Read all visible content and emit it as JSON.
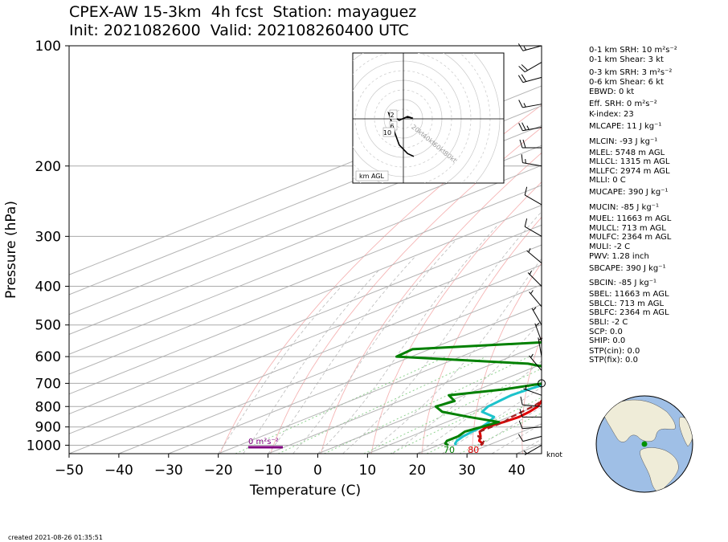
{
  "header": {
    "title_line1": "CPEX-AW 15-3km  4h fcst  Station: mayaguez",
    "title_line2": "Init: 2021082600  Valid: 202108260400 UTC"
  },
  "footer": {
    "created": "created 2021-08-26 01:35:51"
  },
  "chart_data": {
    "type": "skew-t log-p sounding",
    "xlabel": "Temperature (C)",
    "ylabel": "Pressure (hPa)",
    "x_ticks": [
      -50,
      -40,
      -30,
      -20,
      -10,
      0,
      10,
      20,
      30,
      40
    ],
    "y_ticks": [
      100,
      200,
      300,
      400,
      500,
      600,
      700,
      800,
      900,
      1000
    ],
    "xlim": [
      -50,
      45
    ],
    "ylim": [
      1050,
      100
    ],
    "log_pressure": true,
    "grid": true,
    "series": [
      {
        "key": "temperature",
        "color": "#dd0000",
        "points": [
          [
            28.5,
            1000
          ],
          [
            28,
            990
          ],
          [
            26,
            975
          ],
          [
            24,
            950
          ],
          [
            21.5,
            925
          ],
          [
            20.5,
            900
          ],
          [
            21.5,
            875
          ],
          [
            22,
            850
          ],
          [
            21.5,
            825
          ],
          [
            20.5,
            800
          ],
          [
            18.5,
            775
          ],
          [
            16.5,
            750
          ],
          [
            15,
            725
          ],
          [
            14,
            700
          ],
          [
            13.5,
            650
          ],
          [
            13,
            600
          ],
          [
            11.5,
            550
          ],
          [
            10,
            500
          ],
          [
            7.5,
            450
          ],
          [
            5.5,
            400
          ],
          [
            2,
            350
          ],
          [
            -2,
            300
          ],
          [
            -7.5,
            250
          ],
          [
            -14.5,
            200
          ]
        ]
      },
      {
        "key": "dewpoint",
        "color": "#1cc3cc",
        "points": [
          [
            23.5,
            1000
          ],
          [
            22.5,
            990
          ],
          [
            21.5,
            975
          ],
          [
            20.5,
            950
          ],
          [
            20,
            925
          ],
          [
            19.5,
            900
          ],
          [
            18.5,
            875
          ],
          [
            17,
            850
          ],
          [
            12,
            825
          ],
          [
            10.5,
            800
          ],
          [
            10,
            775
          ],
          [
            9.5,
            750
          ],
          [
            10,
            725
          ],
          [
            11,
            700
          ],
          [
            9,
            650
          ],
          [
            4,
            600
          ],
          [
            4.5,
            575
          ],
          [
            5,
            550
          ],
          [
            4.5,
            500
          ],
          [
            2,
            450
          ],
          [
            0,
            400
          ],
          [
            -3.5,
            350
          ],
          [
            -8,
            300
          ],
          [
            -13.5,
            250
          ],
          [
            -19.5,
            200
          ],
          [
            -26,
            150
          ],
          [
            -31,
            120
          ],
          [
            -32,
            110
          ],
          [
            -27,
            100
          ]
        ]
      },
      {
        "key": "wetbulb",
        "color": "#008000",
        "points": [
          [
            22,
            1000
          ],
          [
            20.5,
            990
          ],
          [
            19.5,
            975
          ],
          [
            19.5,
            950
          ],
          [
            18.5,
            925
          ],
          [
            19.5,
            900
          ],
          [
            20.5,
            875
          ],
          [
            12,
            850
          ],
          [
            4,
            825
          ],
          [
            0,
            800
          ],
          [
            1,
            775
          ],
          [
            -3,
            750
          ],
          [
            5,
            725
          ],
          [
            10,
            700
          ],
          [
            7.5,
            650
          ],
          [
            -3,
            625
          ],
          [
            -33,
            600
          ],
          [
            -33.5,
            575
          ],
          [
            -8,
            550
          ],
          [
            -7.5,
            500
          ],
          [
            -10,
            450
          ],
          [
            -15,
            400
          ],
          [
            -15,
            375
          ],
          [
            -13,
            350
          ],
          [
            -14,
            300
          ],
          [
            -16,
            250
          ],
          [
            -21,
            200
          ],
          [
            -30,
            150
          ],
          [
            -34,
            120
          ],
          [
            -35,
            110
          ],
          [
            -35,
            100
          ]
        ]
      },
      {
        "key": "parcel",
        "color": "#a02020",
        "dashed": true,
        "points": [
          [
            28.5,
            1000
          ],
          [
            27,
            975
          ],
          [
            23.5,
            950
          ],
          [
            21.5,
            925
          ],
          [
            21.5,
            900
          ],
          [
            21.5,
            875
          ],
          [
            20.5,
            850
          ],
          [
            20,
            825
          ],
          [
            19.5,
            800
          ],
          [
            18.5,
            775
          ],
          [
            17.5,
            750
          ],
          [
            16.5,
            725
          ],
          [
            16,
            700
          ],
          [
            15,
            650
          ],
          [
            14,
            600
          ],
          [
            12.5,
            550
          ],
          [
            11,
            500
          ],
          [
            9,
            450
          ],
          [
            6.5,
            400
          ],
          [
            3,
            350
          ],
          [
            -1.5,
            300
          ],
          [
            -7,
            250
          ],
          [
            -14.5,
            200
          ],
          [
            -30,
            140
          ],
          [
            -41,
            110
          ]
        ]
      }
    ],
    "surface_labels": {
      "temperature": "80",
      "wetbulb": "70"
    },
    "srh_bar_label": "0 m²s⁻²",
    "barbs": {
      "units": "knot",
      "points": [
        [
          100,
          15,
          255
        ],
        [
          110,
          20,
          240
        ],
        [
          120,
          20,
          255
        ],
        [
          140,
          15,
          260
        ],
        [
          160,
          25,
          260
        ],
        [
          180,
          20,
          270
        ],
        [
          200,
          15,
          280
        ],
        [
          250,
          10,
          300
        ],
        [
          300,
          10,
          300
        ],
        [
          350,
          5,
          310
        ],
        [
          400,
          5,
          315
        ],
        [
          450,
          5,
          320
        ],
        [
          500,
          5,
          330
        ],
        [
          550,
          5,
          340
        ],
        [
          600,
          5,
          350
        ],
        [
          650,
          5,
          320
        ],
        [
          700,
          0,
          0
        ],
        [
          750,
          5,
          290
        ],
        [
          800,
          10,
          275
        ],
        [
          850,
          10,
          270
        ],
        [
          900,
          10,
          265
        ],
        [
          950,
          10,
          255
        ],
        [
          1000,
          5,
          240
        ]
      ]
    },
    "hodograph": {
      "range_labels": [
        "20kt",
        "40kt",
        "60kt",
        "80kt"
      ],
      "height_labels": [
        "2",
        "6",
        "10"
      ],
      "box_label": "km AGL",
      "points": [
        [
          1.5,
          0.5
        ],
        [
          3,
          0.5
        ],
        [
          4.5,
          0.2
        ],
        [
          2,
          0.8
        ],
        [
          -2,
          -0.5
        ],
        [
          -7,
          2
        ],
        [
          -4,
          -5
        ],
        [
          -2,
          -9
        ],
        [
          2,
          -12
        ],
        [
          5,
          -13
        ]
      ]
    },
    "globe_marker": {
      "lat": 18.2,
      "lon": -67.1
    }
  },
  "indices": [
    "0-1 km SRH: 10 m²s⁻²",
    "0-1 km Shear: 3 kt",
    "0-3 km SRH: 3 m²s⁻²",
    "0-6 km Shear: 6 kt",
    "EBWD: 0 kt",
    "Eff. SRH: 0 m²s⁻²",
    "K-index: 23",
    "MLCAPE: 11 J kg⁻¹",
    "MLCIN: -93 J kg⁻¹",
    "MLEL: 5748 m AGL",
    "MLLCL: 1315 m AGL",
    "MLLFC: 2974 m AGL",
    "MLLI: 0 C",
    "MUCAPE: 390 J kg⁻¹",
    "MUCIN: -85 J kg⁻¹",
    "MUEL: 11663 m AGL",
    "MULCL: 713 m AGL",
    "MULFC: 2364 m AGL",
    "MULI: -2 C",
    "PWV: 1.28 inch",
    "SBCAPE: 390 J kg⁻¹",
    "SBCIN: -85 J kg⁻¹",
    "SBEL: 11663 m AGL",
    "SBLCL: 713 m AGL",
    "SBLFC: 2364 m AGL",
    "SBLI: -2 C",
    "SCP: 0.0",
    "SHIP: 0.0",
    "STP(cin): 0.0",
    "STP(fix): 0.0"
  ],
  "colors": {
    "temperature": "#dd0000",
    "dewpoint": "#1cc3cc",
    "wetbulb": "#008000",
    "parcel": "#a02020",
    "isobar": "#aaaaaa",
    "isotherm": "#b4b4b4",
    "dry_adiabat": "#f5b5b5",
    "moist_adiabat": "#bbbbbb",
    "mixing_ratio": "#8fd28f",
    "srh_bar": "#800080",
    "ocean": "#9fbfe6",
    "land": "#efecd8"
  }
}
